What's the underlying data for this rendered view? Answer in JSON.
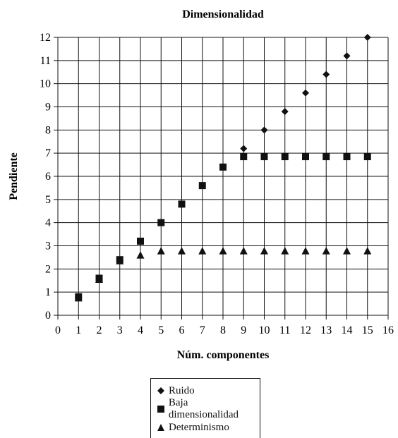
{
  "chart_data": {
    "type": "scatter",
    "title": "Dimensionalidad",
    "xlabel": "Núm. componentes",
    "ylabel": "Pendiente",
    "xlim": [
      0,
      16
    ],
    "ylim": [
      0,
      12
    ],
    "x_ticks": [
      0,
      1,
      2,
      3,
      4,
      5,
      6,
      7,
      8,
      9,
      10,
      11,
      12,
      13,
      14,
      15,
      16
    ],
    "y_ticks": [
      0,
      1,
      2,
      3,
      4,
      5,
      6,
      7,
      8,
      9,
      10,
      11,
      12
    ],
    "grid": true,
    "legend_placement": "bottom",
    "series": [
      {
        "name": "Ruido",
        "marker": "diamond",
        "x": [
          1,
          2,
          3,
          4,
          5,
          6,
          7,
          8,
          9,
          10,
          11,
          12,
          13,
          14,
          15
        ],
        "values": [
          0.8,
          1.6,
          2.4,
          3.2,
          4.0,
          4.8,
          5.6,
          6.4,
          7.2,
          8.0,
          8.8,
          9.6,
          10.4,
          11.2,
          12.0
        ]
      },
      {
        "name": "Baja dimensionalidad",
        "marker": "square",
        "x": [
          1,
          2,
          3,
          4,
          5,
          6,
          7,
          8,
          9,
          10,
          11,
          12,
          13,
          14,
          15
        ],
        "values": [
          0.8,
          1.6,
          2.4,
          3.2,
          4.0,
          4.8,
          5.6,
          6.4,
          6.85,
          6.85,
          6.85,
          6.85,
          6.85,
          6.85,
          6.85
        ]
      },
      {
        "name": "Determinismo",
        "marker": "triangle",
        "x": [
          1,
          2,
          3,
          4,
          5,
          6,
          7,
          8,
          9,
          10,
          11,
          12,
          13,
          14,
          15
        ],
        "values": [
          0.75,
          1.55,
          2.35,
          2.6,
          2.78,
          2.78,
          2.78,
          2.78,
          2.78,
          2.78,
          2.78,
          2.78,
          2.78,
          2.78,
          2.78
        ]
      }
    ],
    "color": "#111111"
  }
}
